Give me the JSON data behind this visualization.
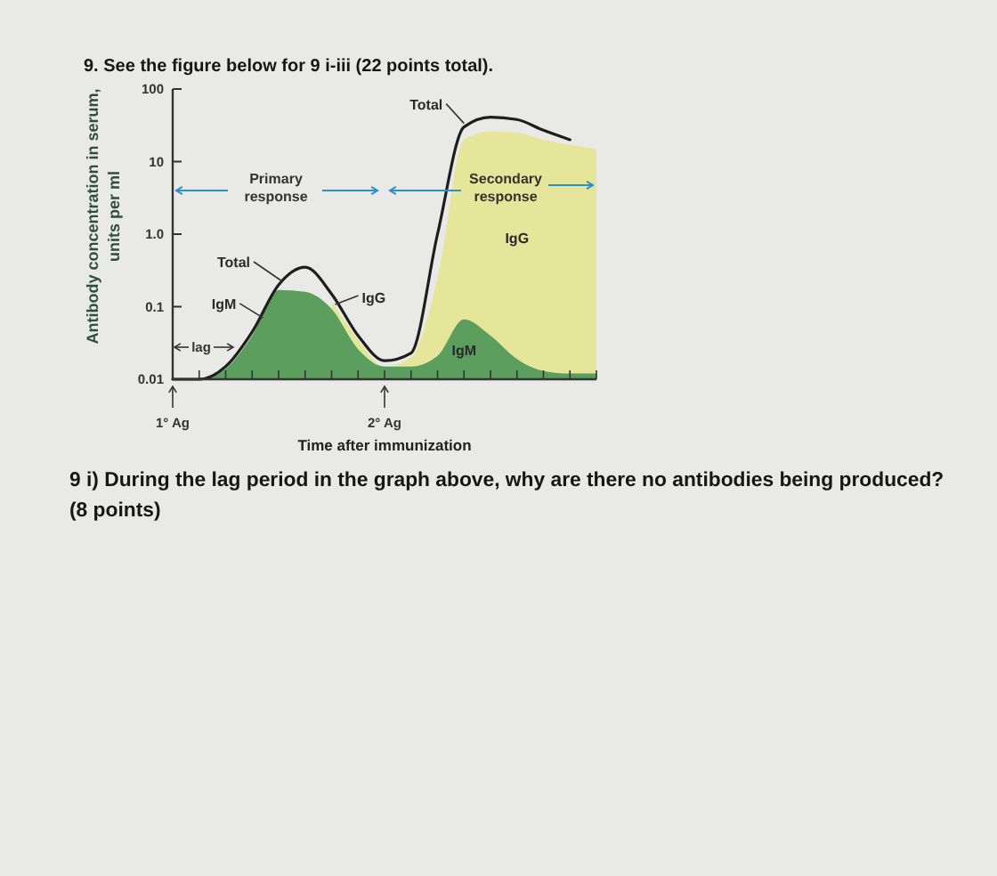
{
  "chart_data": {
    "type": "area",
    "title": "9. See the figure below for 9 i-iii (22 points total).",
    "xlabel": "Time after immunization",
    "ylabel": "Antibody concentration in serum,\nunits per ml",
    "categories": [
      null,
      null,
      null,
      null,
      null,
      null,
      null,
      null,
      null,
      null,
      null,
      null,
      null,
      null,
      null,
      null,
      null
    ],
    "series": [
      {
        "name": "IgG",
        "color": "#e5e69a",
        "values": [
          null,
          null,
          null,
          null,
          null,
          null,
          0.12,
          0.035,
          0.015,
          0.02,
          0.25,
          20,
          26,
          25,
          20,
          17,
          15
        ]
      },
      {
        "name": "IgM",
        "color": "#5b9e5e",
        "values": [
          0.01,
          0.01,
          0.014,
          0.04,
          0.17,
          0.16,
          0.093,
          0.026,
          0.015,
          0.015,
          0.021,
          0.067,
          0.04,
          0.019,
          0.013,
          0.012,
          0.012
        ]
      },
      {
        "name": "Total",
        "type": "line",
        "color": "#1e1e1e",
        "values": [
          0.01,
          0.01,
          0.015,
          0.045,
          0.2,
          0.35,
          0.15,
          0.04,
          0.018,
          0.023,
          1.0,
          30,
          41,
          38,
          27,
          20,
          null
        ]
      }
    ],
    "log": true,
    "ylim": [
      0.01,
      100
    ],
    "yticks": [
      0.01,
      0.1,
      {
        "value": 1,
        "label": "1.0"
      },
      10,
      100
    ],
    "annotations": [
      "Primary\nresponse",
      "Secondary\nresponse",
      "lag",
      "1° Ag",
      "2° Ag",
      "9 i) During the lag period in the graph above, why are there no antibodies being produced?\n(8 points)"
    ]
  }
}
